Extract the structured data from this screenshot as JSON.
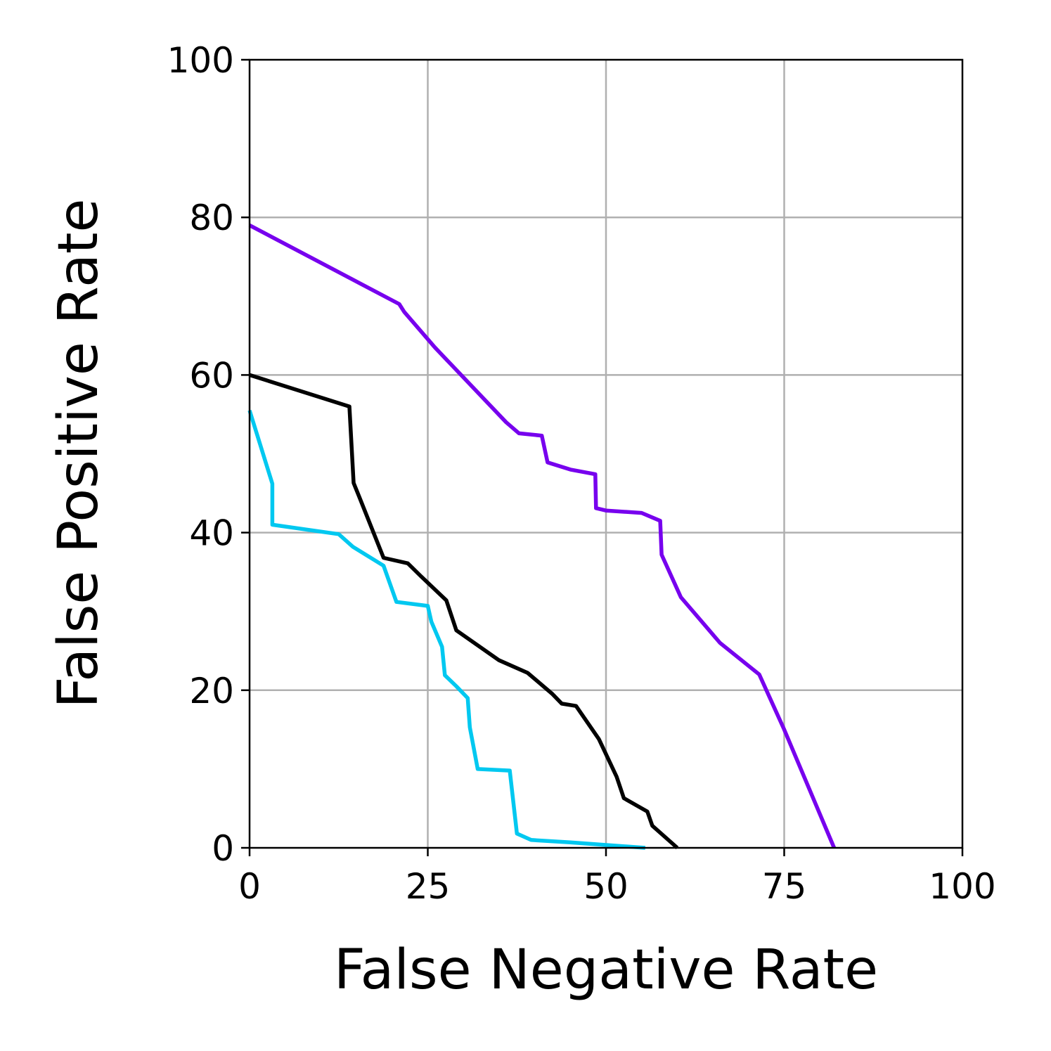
{
  "chart_data": {
    "type": "line",
    "xlabel": "False Negative Rate",
    "ylabel": "False Positive Rate",
    "xlim": [
      0,
      100
    ],
    "ylim": [
      0,
      100
    ],
    "xticks": [
      "0",
      "25",
      "50",
      "75",
      "100"
    ],
    "yticks": [
      "0",
      "20",
      "40",
      "60",
      "80",
      "100"
    ],
    "grid": true,
    "series": [
      {
        "color": "#7700ee",
        "points": [
          [
            0,
            79
          ],
          [
            21,
            69
          ],
          [
            21.7,
            68
          ],
          [
            26,
            63.5
          ],
          [
            36,
            54
          ],
          [
            37.8,
            52.6
          ],
          [
            41,
            52.3
          ],
          [
            41.8,
            48.9
          ],
          [
            45,
            48
          ],
          [
            48.5,
            47.4
          ],
          [
            48.6,
            43.1
          ],
          [
            50,
            42.8
          ],
          [
            55,
            42.5
          ],
          [
            57.6,
            41.5
          ],
          [
            57.8,
            37.2
          ],
          [
            60.5,
            31.8
          ],
          [
            66,
            26
          ],
          [
            71.5,
            22
          ],
          [
            75,
            15
          ],
          [
            82,
            0
          ]
        ]
      },
      {
        "color": "#000000",
        "points": [
          [
            0,
            60
          ],
          [
            14,
            56
          ],
          [
            14.6,
            46.3
          ],
          [
            15.4,
            44.5
          ],
          [
            18.8,
            36.8
          ],
          [
            22.2,
            36.1
          ],
          [
            24,
            34.5
          ],
          [
            27.6,
            31.4
          ],
          [
            29,
            27.6
          ],
          [
            35,
            23.8
          ],
          [
            39,
            22.2
          ],
          [
            42.5,
            19.5
          ],
          [
            43.8,
            18.3
          ],
          [
            45.8,
            18
          ],
          [
            49,
            13.8
          ],
          [
            51.5,
            9
          ],
          [
            52.5,
            6.3
          ],
          [
            55.8,
            4.6
          ],
          [
            56.5,
            2.8
          ],
          [
            60,
            0
          ]
        ]
      },
      {
        "color": "#00c8f0",
        "points": [
          [
            0,
            55.5
          ],
          [
            3.2,
            46.2
          ],
          [
            3.2,
            41
          ],
          [
            12.5,
            39.8
          ],
          [
            14.5,
            38.2
          ],
          [
            18.8,
            35.8
          ],
          [
            20.6,
            31.2
          ],
          [
            25,
            30.7
          ],
          [
            25.5,
            28.7
          ],
          [
            27,
            25.5
          ],
          [
            27.4,
            21.9
          ],
          [
            29,
            20.5
          ],
          [
            30.6,
            19
          ],
          [
            30.9,
            15.3
          ],
          [
            32,
            10
          ],
          [
            36.5,
            9.8
          ],
          [
            37.5,
            1.8
          ],
          [
            39.5,
            1
          ],
          [
            45,
            0.7
          ],
          [
            55.5,
            0
          ]
        ]
      }
    ]
  }
}
